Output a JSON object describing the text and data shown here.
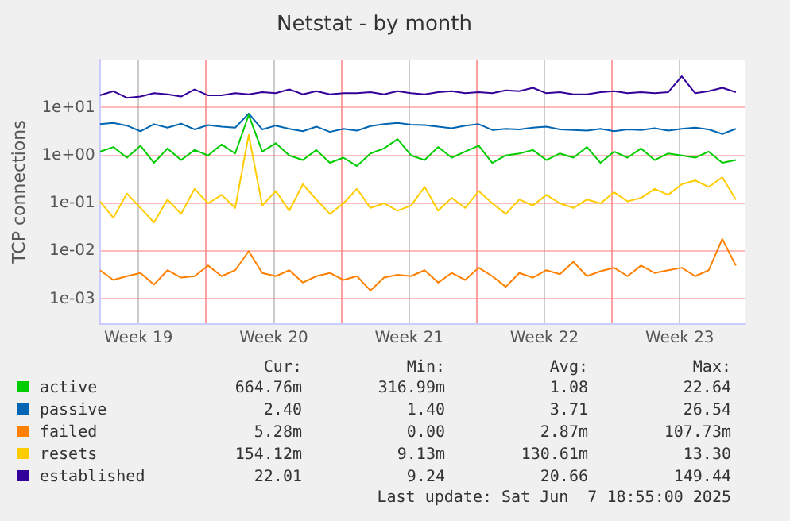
{
  "chart_data": {
    "type": "line",
    "title": "Netstat - by month",
    "ylabel": "TCP connections",
    "log": "y",
    "grid": true,
    "legend": "bottom",
    "marker": "none",
    "line_style": "solid",
    "x": [
      "2025-05-06T12:00",
      "2025-05-07T04:48",
      "2025-05-07T21:36",
      "2025-05-08T14:24",
      "2025-05-09T07:12",
      "2025-05-10T00:00",
      "2025-05-10T16:48",
      "2025-05-11T09:36",
      "2025-05-12T02:24",
      "2025-05-12T19:12",
      "2025-05-13T12:00",
      "2025-05-14T04:48",
      "2025-05-14T21:36",
      "2025-05-15T14:24",
      "2025-05-16T07:12",
      "2025-05-17T00:00",
      "2025-05-17T16:48",
      "2025-05-18T09:36",
      "2025-05-19T02:24",
      "2025-05-19T19:12",
      "2025-05-20T12:00",
      "2025-05-21T04:48",
      "2025-05-21T21:36",
      "2025-05-22T14:24",
      "2025-05-23T07:12",
      "2025-05-24T00:00",
      "2025-05-24T16:48",
      "2025-05-25T09:36",
      "2025-05-26T02:24",
      "2025-05-26T19:12",
      "2025-05-27T12:00",
      "2025-05-28T04:48",
      "2025-05-28T21:36",
      "2025-05-29T14:24",
      "2025-05-30T07:12",
      "2025-05-31T00:00",
      "2025-05-31T16:48",
      "2025-06-01T09:36",
      "2025-06-02T02:24",
      "2025-06-02T19:12",
      "2025-06-03T12:00",
      "2025-06-04T04:48",
      "2025-06-04T21:36",
      "2025-06-05T14:24",
      "2025-06-06T07:12",
      "2025-06-07T00:00",
      "2025-06-07T16:48",
      "2025-06-08T09:36"
    ],
    "xlim": [
      "2025-05-06T12:00",
      "2025-06-08T21:36"
    ],
    "xticks": [
      {
        "value": "2025-05-08T12:00",
        "label": "Week 19"
      },
      {
        "value": "2025-05-12T00:00",
        "label": null
      },
      {
        "value": "2025-05-15T12:00",
        "label": "Week 20"
      },
      {
        "value": "2025-05-19T00:00",
        "label": null
      },
      {
        "value": "2025-05-22T12:00",
        "label": "Week 21"
      },
      {
        "value": "2025-05-26T00:00",
        "label": null
      },
      {
        "value": "2025-05-29T12:00",
        "label": "Week 22"
      },
      {
        "value": "2025-06-02T00:00",
        "label": null
      },
      {
        "value": "2025-06-05T12:00",
        "label": "Week 23"
      }
    ],
    "ylim": [
      0.0003,
      100
    ],
    "yticks": [
      {
        "value": 0.001,
        "label": "1e-03"
      },
      {
        "value": 0.01,
        "label": "1e-02"
      },
      {
        "value": 0.1,
        "label": "1e-01"
      },
      {
        "value": 1,
        "label": "1e+00"
      },
      {
        "value": 10,
        "label": "1e+01"
      }
    ],
    "series": [
      {
        "name": "active",
        "color": "#00cc00",
        "values": [
          1.2,
          1.5,
          0.9,
          1.6,
          0.7,
          1.4,
          0.8,
          1.3,
          1.0,
          1.7,
          1.1,
          7.0,
          1.2,
          1.8,
          1.0,
          0.8,
          1.3,
          0.7,
          0.9,
          0.6,
          1.1,
          1.4,
          2.2,
          1.0,
          0.8,
          1.5,
          0.9,
          1.2,
          1.6,
          0.7,
          1.0,
          1.1,
          1.3,
          0.8,
          1.1,
          0.9,
          1.5,
          0.7,
          1.2,
          0.9,
          1.4,
          0.8,
          1.1,
          1.0,
          0.9,
          1.2,
          0.7,
          0.8
        ]
      },
      {
        "name": "passive",
        "color": "#0066b3",
        "values": [
          4.5,
          4.8,
          4.2,
          3.2,
          4.5,
          3.8,
          4.6,
          3.5,
          4.3,
          4.0,
          3.8,
          7.5,
          3.5,
          4.2,
          3.6,
          3.2,
          4.0,
          3.1,
          3.6,
          3.3,
          4.1,
          4.5,
          4.8,
          4.4,
          4.3,
          4.0,
          3.7,
          4.2,
          4.5,
          3.4,
          3.6,
          3.5,
          3.8,
          4.0,
          3.5,
          3.4,
          3.3,
          3.6,
          3.2,
          3.5,
          3.4,
          3.7,
          3.3,
          3.6,
          3.8,
          3.5,
          2.8,
          3.6
        ]
      },
      {
        "name": "failed",
        "color": "#ff8000",
        "values": [
          0.004,
          0.0025,
          0.003,
          0.0035,
          0.002,
          0.004,
          0.0028,
          0.003,
          0.005,
          0.003,
          0.004,
          0.01,
          0.0035,
          0.003,
          0.004,
          0.0022,
          0.003,
          0.0035,
          0.0025,
          0.003,
          0.0015,
          0.0028,
          0.0032,
          0.003,
          0.004,
          0.0022,
          0.0035,
          0.0025,
          0.0045,
          0.003,
          0.0018,
          0.0035,
          0.0028,
          0.004,
          0.0033,
          0.006,
          0.003,
          0.0038,
          0.0045,
          0.003,
          0.005,
          0.0035,
          0.004,
          0.0045,
          0.003,
          0.004,
          0.018,
          0.005
        ]
      },
      {
        "name": "resets",
        "color": "#ffcc00",
        "values": [
          0.11,
          0.05,
          0.16,
          0.08,
          0.04,
          0.12,
          0.06,
          0.2,
          0.1,
          0.15,
          0.08,
          2.7,
          0.09,
          0.18,
          0.07,
          0.25,
          0.12,
          0.06,
          0.1,
          0.2,
          0.08,
          0.1,
          0.07,
          0.09,
          0.22,
          0.07,
          0.13,
          0.08,
          0.18,
          0.1,
          0.06,
          0.12,
          0.09,
          0.15,
          0.1,
          0.08,
          0.12,
          0.1,
          0.17,
          0.11,
          0.13,
          0.2,
          0.15,
          0.25,
          0.3,
          0.22,
          0.35,
          0.12
        ]
      },
      {
        "name": "established",
        "color": "#330099",
        "values": [
          18,
          22,
          16,
          17,
          20,
          19,
          17,
          24,
          18,
          18,
          20,
          19,
          21,
          20,
          24,
          19,
          22,
          19,
          20,
          20,
          21,
          19,
          22,
          20,
          19,
          21,
          22,
          20,
          21,
          20,
          23,
          22,
          26,
          20,
          21,
          19,
          19,
          21,
          22,
          20,
          21,
          20,
          21,
          45,
          20,
          22,
          26,
          21
        ]
      }
    ],
    "annotations": [
      "Cur:",
      "Min:",
      "Avg:",
      "Max:",
      "664.76m",
      "316.99m",
      "1.08",
      "22.64",
      "2.40",
      "1.40",
      "3.71",
      "26.54",
      "5.28m",
      "0.00",
      "2.87m",
      "107.73m",
      "154.12m",
      "9.13m",
      "130.61m",
      "13.30",
      "22.01",
      "9.24",
      "20.66",
      "149.44",
      "Last update: Sat Jun  7 18:55:00 2025"
    ]
  }
}
